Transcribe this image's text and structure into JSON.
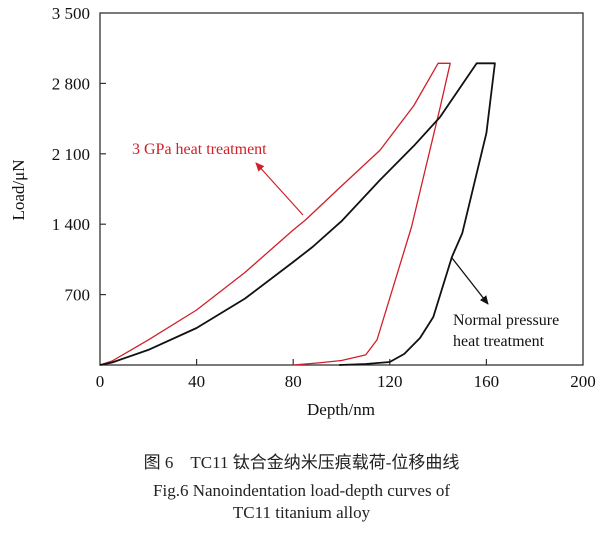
{
  "chart_data": {
    "type": "line",
    "xlabel": "Depth/nm",
    "ylabel": "Load/μN",
    "xlim": [
      0,
      200
    ],
    "ylim": [
      0,
      3500
    ],
    "xticks": [
      0,
      40,
      80,
      120,
      160,
      200
    ],
    "xtick_labels": [
      "0",
      "40",
      "80",
      "120",
      "160",
      "200"
    ],
    "yticks": [
      700,
      1400,
      2100,
      2800,
      3500
    ],
    "ytick_labels": [
      "700",
      "1 400",
      "2 100",
      "2 800",
      "3 500"
    ],
    "grid": false,
    "series": [
      {
        "name": "3 GPa heat treatment",
        "color": "#d0202a",
        "x": [
          0,
          5,
          20,
          40,
          60,
          80,
          85,
          100,
          116,
          130,
          140,
          145,
          140.8,
          129,
          114.7,
          110,
          100,
          90,
          80
        ],
        "y": [
          0,
          40,
          250,
          547,
          920,
          1342,
          1441,
          1780,
          2137,
          2580,
          3000,
          3000,
          2555,
          1372,
          250,
          100,
          45,
          20,
          0
        ]
      },
      {
        "name": "Normal pressure heat treatment",
        "color": "#111111",
        "x": [
          0,
          5,
          20,
          40,
          60,
          80,
          88,
          100,
          116,
          130,
          140.8,
          156,
          163.5,
          160,
          150,
          145.7,
          138,
          132.5,
          126,
          120,
          110,
          99
        ],
        "y": [
          0,
          25,
          150,
          368,
          660,
          1024,
          1173,
          1430,
          1840,
          2180,
          2465,
          3000,
          3000,
          2306,
          1312,
          1074,
          477,
          268,
          110,
          30,
          10,
          0
        ]
      }
    ],
    "annotations": [
      {
        "text": "3 GPa heat treatment",
        "color": "#d0202a"
      },
      {
        "text_line1": "Normal pressure",
        "text_line2": "heat treatment",
        "color": "#111111"
      }
    ]
  },
  "caption": {
    "line1": "图 6　TC11 钛合金纳米压痕载荷-位移曲线",
    "line2": "Fig.6 Nanoindentation load-depth curves of",
    "line3": "TC11 titanium alloy"
  }
}
